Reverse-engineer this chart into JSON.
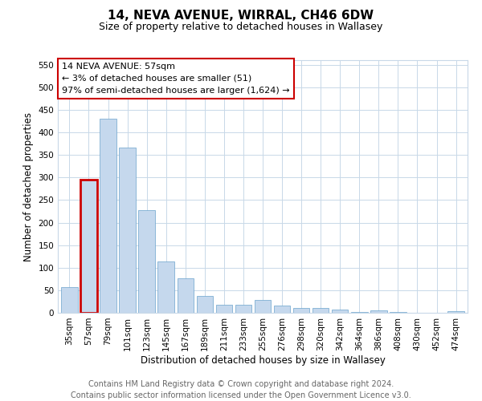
{
  "title": "14, NEVA AVENUE, WIRRAL, CH46 6DW",
  "subtitle": "Size of property relative to detached houses in Wallasey",
  "xlabel": "Distribution of detached houses by size in Wallasey",
  "ylabel": "Number of detached properties",
  "categories": [
    "35sqm",
    "57sqm",
    "79sqm",
    "101sqm",
    "123sqm",
    "145sqm",
    "167sqm",
    "189sqm",
    "211sqm",
    "233sqm",
    "255sqm",
    "276sqm",
    "298sqm",
    "320sqm",
    "342sqm",
    "364sqm",
    "386sqm",
    "408sqm",
    "430sqm",
    "452sqm",
    "474sqm"
  ],
  "values": [
    57,
    295,
    430,
    367,
    228,
    113,
    76,
    37,
    17,
    17,
    29,
    16,
    10,
    10,
    8,
    2,
    5,
    1,
    0,
    0,
    4
  ],
  "bar_color": "#c5d8ed",
  "bar_edge_color": "#6aa3cc",
  "highlight_bar_index": 1,
  "highlight_bar_edge_color": "#cc0000",
  "highlight_bar_linewidth": 2.0,
  "annotation_box_text": "14 NEVA AVENUE: 57sqm\n← 3% of detached houses are smaller (51)\n97% of semi-detached houses are larger (1,624) →",
  "annotation_fontsize": 8,
  "ylim": [
    0,
    560
  ],
  "yticks": [
    0,
    50,
    100,
    150,
    200,
    250,
    300,
    350,
    400,
    450,
    500,
    550
  ],
  "footer_text": "Contains HM Land Registry data © Crown copyright and database right 2024.\nContains public sector information licensed under the Open Government Licence v3.0.",
  "background_color": "#ffffff",
  "grid_color": "#c8d8e8",
  "title_fontsize": 11,
  "subtitle_fontsize": 9,
  "xlabel_fontsize": 8.5,
  "ylabel_fontsize": 8.5,
  "tick_fontsize": 7.5,
  "footer_fontsize": 7
}
